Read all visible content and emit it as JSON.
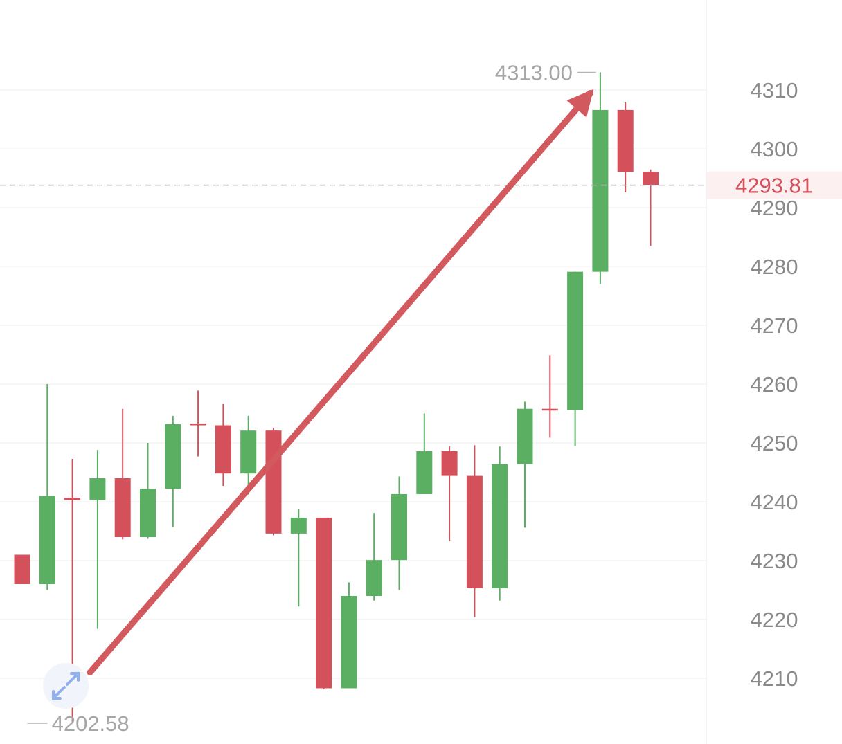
{
  "colors": {
    "up": "#5aaf62",
    "down": "#d4505a",
    "arrow": "#d25a5f",
    "grid": "#ededed",
    "axis_text": "#8a8a8a",
    "price_line": "#b3b3b3",
    "price_label": "#d4505a",
    "price_label_bg": "#fdf0f0"
  },
  "chart_data": {
    "type": "candlestick",
    "title": "",
    "xlabel": "",
    "ylabel": "",
    "ylim": [
      4200.0,
      4325.0
    ],
    "grid": true,
    "y_ticks": [
      4210,
      4220,
      4230,
      4240,
      4250,
      4260,
      4270,
      4280,
      4290,
      4300,
      4310
    ],
    "y_tick_labels": [
      "4210",
      "4220",
      "4230",
      "4240",
      "4250",
      "4260",
      "4270",
      "4280",
      "4290",
      "4300",
      "4310"
    ],
    "candles": [
      {
        "open": 4231.0,
        "high": 4231.0,
        "low": 4226.0,
        "close": 4226.0
      },
      {
        "open": 4226.0,
        "high": 4260.0,
        "low": 4225.0,
        "close": 4241.0
      },
      {
        "open": 4240.7,
        "high": 4247.3,
        "low": 4202.58,
        "close": 4240.3
      },
      {
        "open": 4240.3,
        "high": 4248.8,
        "low": 4218.4,
        "close": 4244.0
      },
      {
        "open": 4244.0,
        "high": 4255.8,
        "low": 4233.6,
        "close": 4234.0
      },
      {
        "open": 4234.0,
        "high": 4250.0,
        "low": 4233.7,
        "close": 4242.2
      },
      {
        "open": 4242.2,
        "high": 4254.6,
        "low": 4235.7,
        "close": 4253.2
      },
      {
        "open": 4253.3,
        "high": 4258.9,
        "low": 4247.7,
        "close": 4253.0
      },
      {
        "open": 4253.0,
        "high": 4256.6,
        "low": 4242.7,
        "close": 4244.8
      },
      {
        "open": 4244.8,
        "high": 4254.6,
        "low": 4241.2,
        "close": 4252.1
      },
      {
        "open": 4252.1,
        "high": 4252.6,
        "low": 4234.3,
        "close": 4234.6
      },
      {
        "open": 4234.6,
        "high": 4238.7,
        "low": 4222.2,
        "close": 4237.3
      },
      {
        "open": 4237.3,
        "high": 4237.3,
        "low": 4208.1,
        "close": 4208.3
      },
      {
        "open": 4208.3,
        "high": 4226.3,
        "low": 4208.3,
        "close": 4224.0
      },
      {
        "open": 4224.0,
        "high": 4238.1,
        "low": 4223.2,
        "close": 4230.1
      },
      {
        "open": 4230.1,
        "high": 4244.3,
        "low": 4225.0,
        "close": 4241.3
      },
      {
        "open": 4241.3,
        "high": 4255.0,
        "low": 4241.3,
        "close": 4248.6
      },
      {
        "open": 4248.6,
        "high": 4249.4,
        "low": 4233.4,
        "close": 4244.4
      },
      {
        "open": 4244.4,
        "high": 4249.6,
        "low": 4220.4,
        "close": 4225.3
      },
      {
        "open": 4225.3,
        "high": 4249.4,
        "low": 4223.2,
        "close": 4246.4
      },
      {
        "open": 4246.4,
        "high": 4257.0,
        "low": 4235.6,
        "close": 4255.8
      },
      {
        "open": 4255.8,
        "high": 4264.9,
        "low": 4250.9,
        "close": 4255.6
      },
      {
        "open": 4255.6,
        "high": 4279.1,
        "low": 4249.5,
        "close": 4279.1
      },
      {
        "open": 4279.1,
        "high": 4313.0,
        "low": 4277.0,
        "close": 4306.6
      },
      {
        "open": 4306.6,
        "high": 4307.9,
        "low": 4292.6,
        "close": 4296.1
      },
      {
        "open": 4296.1,
        "high": 4296.5,
        "low": 4283.5,
        "close": 4293.81
      }
    ],
    "last_price": 4293.81,
    "last_price_label": "4293.81",
    "high_marker": {
      "candle_index": 23,
      "value": 4313.0,
      "label": "4313.00"
    },
    "low_marker": {
      "candle_index": 2,
      "value": 4202.58,
      "label": "4202.58"
    },
    "arrow_annotation": {
      "from": {
        "candle_index": 2.7,
        "value": 4211.0
      },
      "to": {
        "candle_index": 22.6,
        "value": 4313.0
      }
    }
  },
  "controls": {
    "expand_icon": "expand-arrows-icon"
  }
}
